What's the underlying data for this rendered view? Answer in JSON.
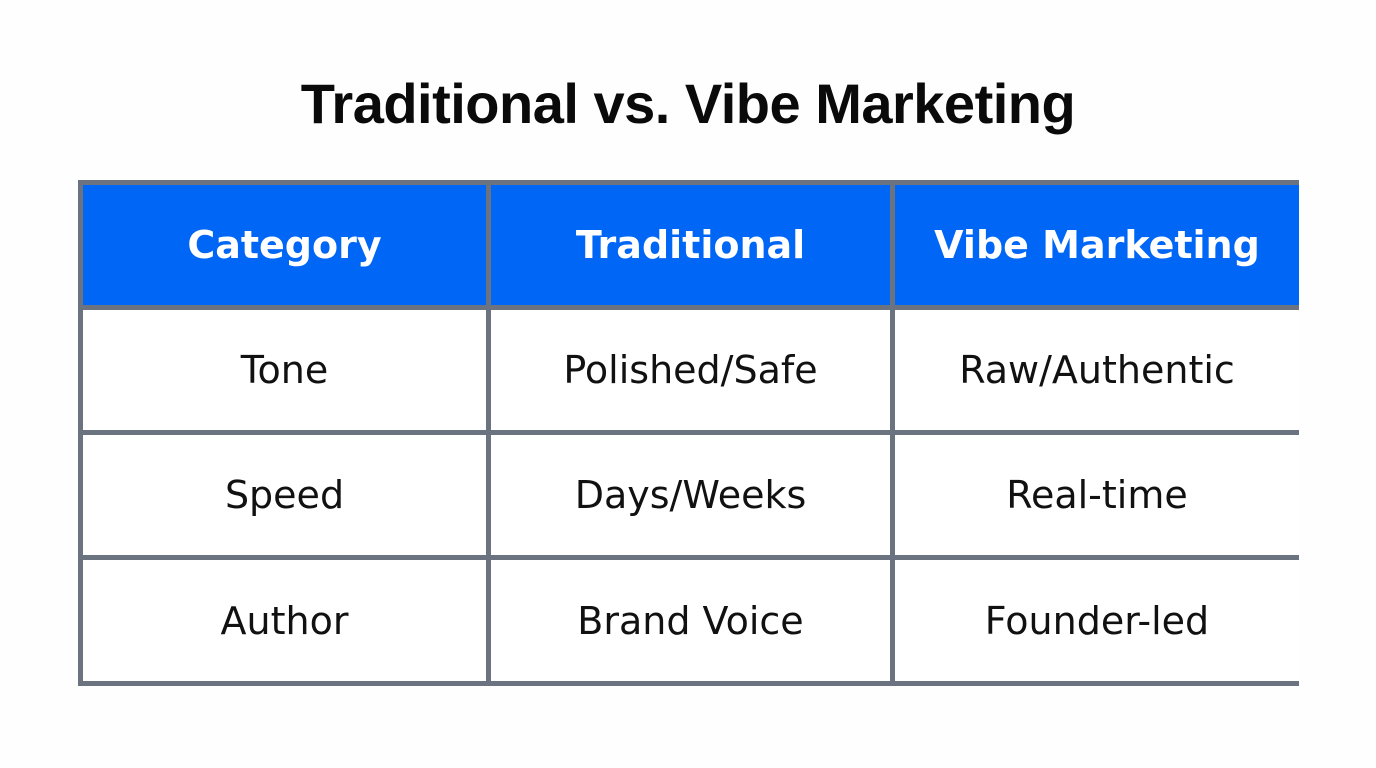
{
  "title": "Traditional vs. Vibe Marketing",
  "table": {
    "headers": [
      "Category",
      "Traditional",
      "Vibe Marketing"
    ],
    "rows": [
      [
        "Tone",
        "Polished/Safe",
        "Raw/Authentic"
      ],
      [
        "Speed",
        "Days/Weeks",
        "Real-time"
      ],
      [
        "Author",
        "Brand Voice",
        "Founder-led"
      ]
    ]
  },
  "colors": {
    "header_bg": "#0066f5",
    "header_text": "#ffffff",
    "border": "#6b7280",
    "cell_bg": "#ffffff",
    "text": "#111111"
  }
}
